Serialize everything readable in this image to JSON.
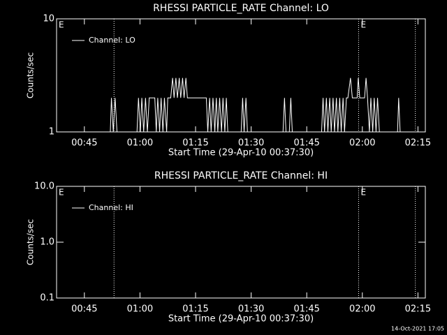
{
  "chart_data": [
    {
      "type": "line",
      "title": "RHESSI PARTICLE_RATE Channel: LO",
      "xlabel": "Start Time (29-Apr-10 00:37:30)",
      "ylabel": "Counts/sec",
      "ylog": true,
      "ylim": [
        1,
        10
      ],
      "yticks": [
        1,
        10
      ],
      "xlim": [
        37.5,
        137
      ],
      "xticks": [
        {
          "value": 45,
          "label": "00:45"
        },
        {
          "value": 60,
          "label": "01:00"
        },
        {
          "value": 75,
          "label": "01:15"
        },
        {
          "value": 90,
          "label": "01:30"
        },
        {
          "value": 105,
          "label": "01:45"
        },
        {
          "value": 120,
          "label": "02:00"
        },
        {
          "value": 135,
          "label": "02:15"
        }
      ],
      "vlines": [
        53,
        119,
        134.3
      ],
      "annotations": [
        {
          "text": "E",
          "x": 37.5
        },
        {
          "text": "E",
          "x": 119
        }
      ],
      "x": [
        37.5,
        52,
        52.3,
        52.8,
        53.3,
        53.8,
        59.2,
        59.6,
        60.1,
        60.5,
        61,
        61.5,
        62,
        62.5,
        64,
        64.4,
        64.8,
        65.3,
        65.7,
        66.2,
        66.6,
        67.2,
        67.5,
        68.3,
        68.8,
        69.2,
        69.7,
        70.1,
        70.6,
        71,
        71.5,
        71.9,
        72.4,
        72.8,
        77.9,
        78.3,
        78.8,
        79.2,
        79.7,
        80.2,
        80.6,
        81,
        81.5,
        82,
        82.4,
        82.9,
        83.3,
        83.7,
        87.3,
        87.7,
        88.1,
        88.6,
        89,
        98.6,
        99,
        99.4,
        100.3,
        100.7,
        101.1,
        109,
        109.4,
        109.8,
        110.3,
        110.7,
        111.2,
        111.6,
        112.1,
        112.5,
        113,
        113.4,
        113.9,
        114.3,
        114.8,
        115.2,
        115.7,
        116.1,
        116.8,
        117.3,
        118.6,
        118.9,
        119.3,
        120.6,
        121,
        121.4,
        121.9,
        122.3,
        122.8,
        123.2,
        123.7,
        124.1,
        124.6,
        129.5,
        129.8,
        130.2,
        137
      ],
      "series": [
        {
          "name": "Channel: LO",
          "color": "#ffffff",
          "values": [
            1,
            1,
            2,
            1,
            2,
            1,
            1,
            2,
            1,
            2,
            1,
            2,
            1,
            2,
            2,
            1,
            2,
            1,
            2,
            1,
            2,
            1,
            2,
            2,
            3,
            2,
            3,
            2,
            3,
            2,
            3,
            2,
            3,
            2,
            2,
            1,
            2,
            1,
            2,
            1,
            2,
            1,
            2,
            1,
            2,
            1,
            2,
            1,
            1,
            2,
            1,
            2,
            1,
            1,
            2,
            1,
            1,
            2,
            1,
            1,
            2,
            1,
            2,
            1,
            2,
            1,
            2,
            1,
            2,
            1,
            2,
            1,
            2,
            1,
            2,
            2,
            3,
            2,
            2,
            3,
            2,
            2,
            3,
            2,
            1,
            2,
            1,
            2,
            1,
            2,
            1,
            1,
            2,
            1,
            1
          ]
        }
      ]
    },
    {
      "type": "line",
      "title": "RHESSI PARTICLE_RATE Channel: HI",
      "xlabel": "Start Time (29-Apr-10 00:37:30)",
      "ylabel": "Counts/sec",
      "ylog": true,
      "ylim": [
        0.1,
        10
      ],
      "yticks": [
        0.1,
        {
          "value": 1,
          "label": "1.0"
        },
        {
          "value": 10,
          "label": "10.0"
        }
      ],
      "xlim": [
        37.5,
        137
      ],
      "xticks": [
        {
          "value": 45,
          "label": "00:45"
        },
        {
          "value": 60,
          "label": "01:00"
        },
        {
          "value": 75,
          "label": "01:15"
        },
        {
          "value": 90,
          "label": "01:30"
        },
        {
          "value": 105,
          "label": "01:45"
        },
        {
          "value": 120,
          "label": "02:00"
        },
        {
          "value": 135,
          "label": "02:15"
        }
      ],
      "vlines": [
        53,
        119,
        134.3
      ],
      "annotations": [
        {
          "text": "E",
          "x": 37.5
        },
        {
          "text": "E",
          "x": 119
        }
      ],
      "x": [],
      "series": [
        {
          "name": "Channel: HI",
          "color": "#ffffff",
          "values": []
        }
      ]
    }
  ],
  "footer": "14-Oct-2021 17:05"
}
